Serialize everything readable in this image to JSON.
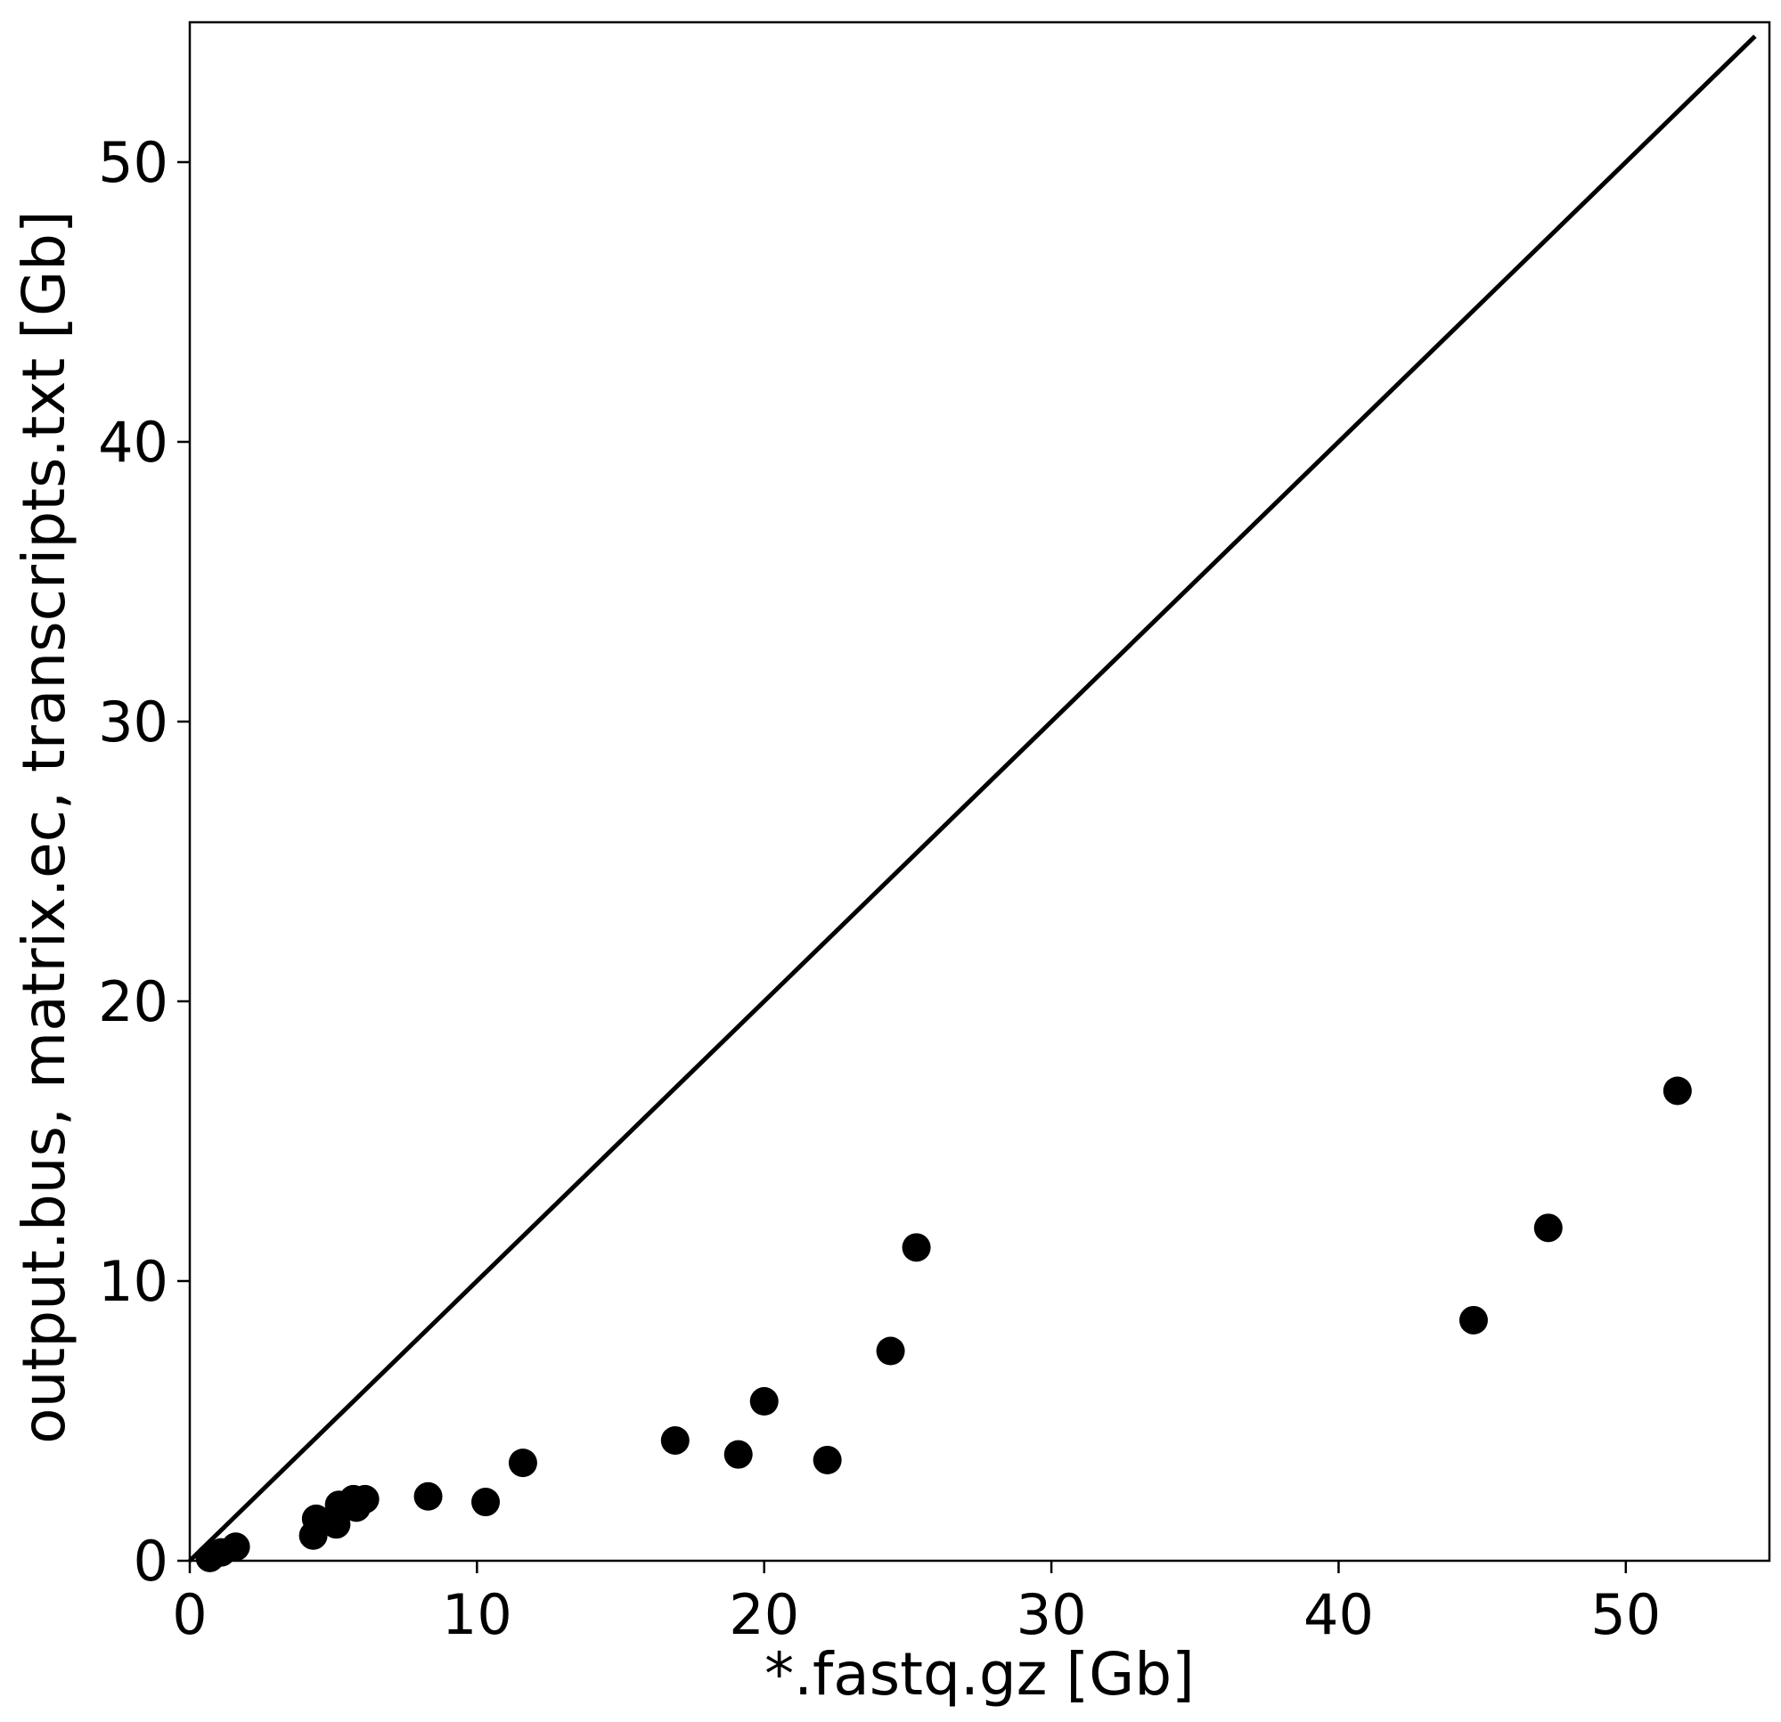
{
  "chart_data": {
    "type": "scatter",
    "title": "",
    "xlabel": "*.fastq.gz [Gb]",
    "ylabel": "output.bus, matrix.ec, transcripts.txt [Gb]",
    "xlim": [
      0,
      55
    ],
    "ylim": [
      0,
      55
    ],
    "xticks": [
      0,
      10,
      20,
      30,
      40,
      50
    ],
    "yticks": [
      0,
      10,
      20,
      30,
      40,
      50
    ],
    "grid": false,
    "legend": "none",
    "marker_color": "#000000",
    "reference_line": {
      "x": [
        0,
        54.5
      ],
      "y": [
        0,
        54.5
      ],
      "color": "#000000"
    },
    "series": [
      {
        "x": [
          0.7,
          1.1,
          1.6,
          4.3,
          4.4,
          5.1,
          5.2,
          5.7,
          5.8,
          6.1,
          8.3,
          10.3,
          11.6,
          16.9,
          19.1,
          20.0,
          22.2,
          24.4,
          25.3,
          44.7,
          47.3,
          51.8
        ],
        "y": [
          0.1,
          0.3,
          0.5,
          0.9,
          1.5,
          1.3,
          2.0,
          2.2,
          1.9,
          2.2,
          2.3,
          2.1,
          3.5,
          4.3,
          3.8,
          5.7,
          3.6,
          7.5,
          11.2,
          8.6,
          11.9,
          16.8
        ]
      }
    ]
  }
}
